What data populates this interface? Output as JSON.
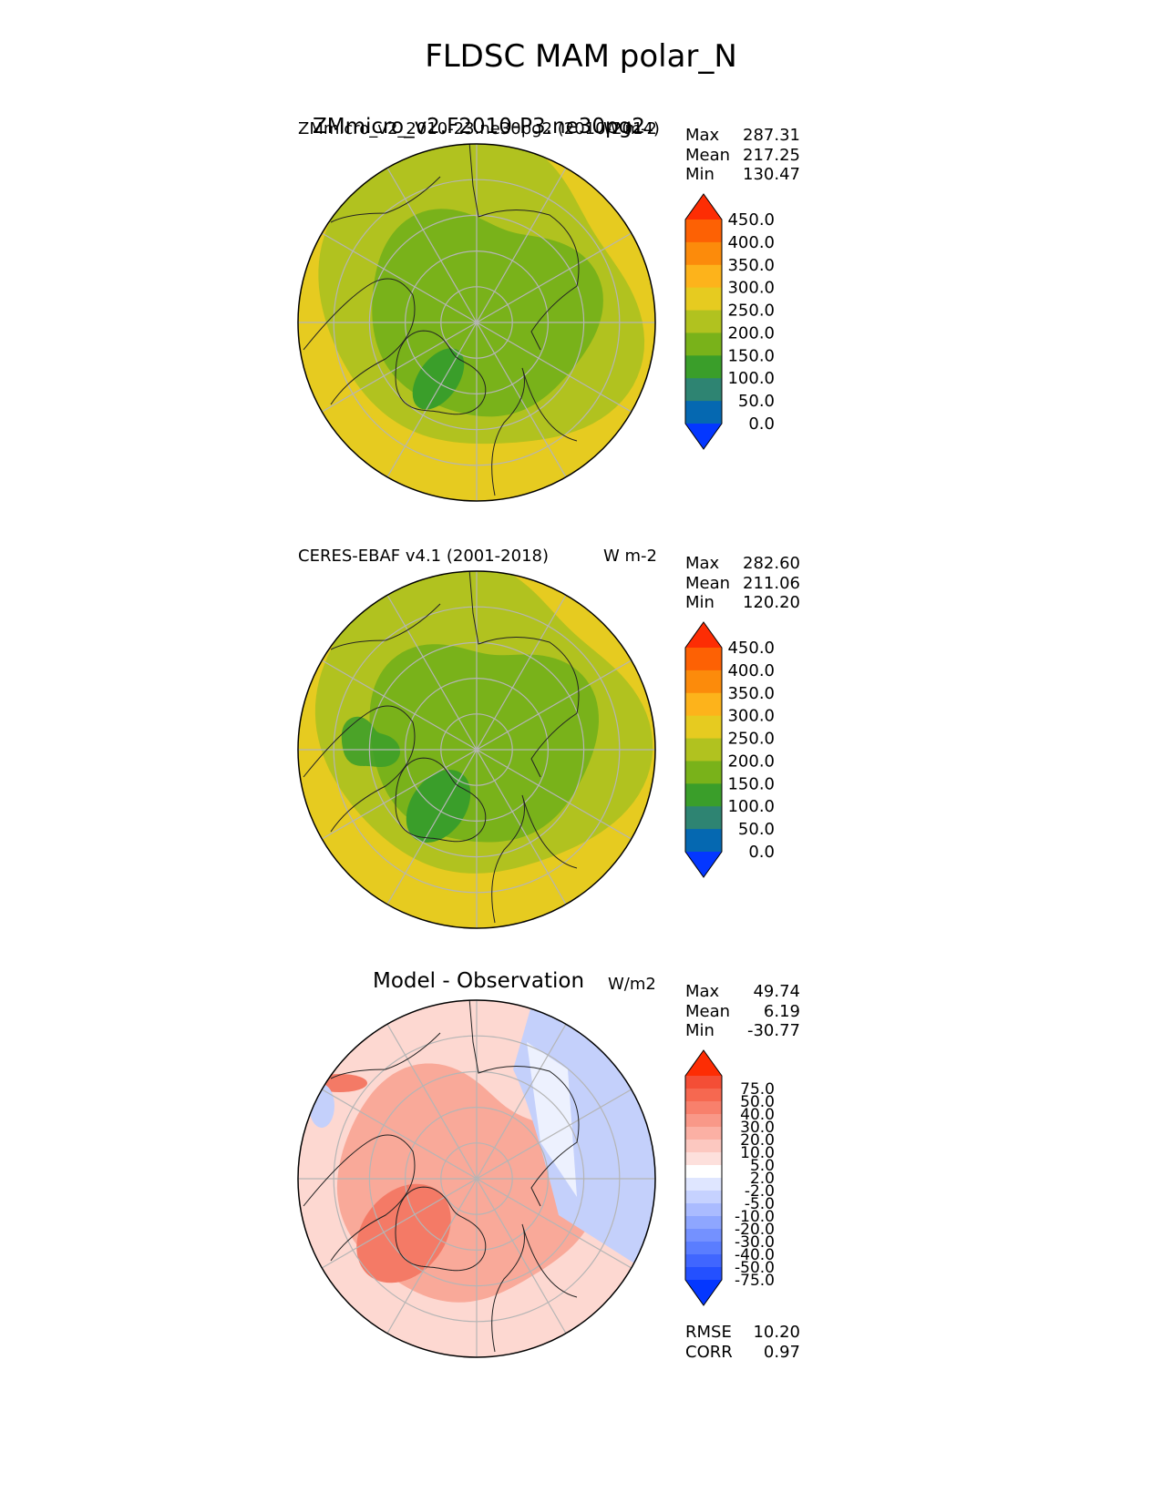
{
  "figure_title": "FLDSC MAM polar_N",
  "panels": [
    {
      "title_main": "ZMmicro_v2.F2010-P3.ne30pg2",
      "title_left": "ZMmicro_v2_2010-23.ne30pg2 (2010-2014)",
      "title_units": "W m-2",
      "stats": {
        "max_label": "Max",
        "max": "287.31",
        "mean_label": "Mean",
        "mean": "217.25",
        "min_label": "Min",
        "min": "130.47"
      }
    },
    {
      "title_left": "CERES-EBAF v4.1 (2001-2018)",
      "title_units": "W m-2",
      "stats": {
        "max_label": "Max",
        "max": "282.60",
        "mean_label": "Mean",
        "mean": "211.06",
        "min_label": "Min",
        "min": "120.20"
      }
    },
    {
      "title_main": "Model - Observation",
      "title_units": "W/m2",
      "stats": {
        "max_label": "Max",
        "max": "49.74",
        "mean_label": "Mean",
        "mean": "6.19",
        "min_label": "Min",
        "min": "-30.77"
      },
      "metrics": {
        "rmse_label": "RMSE",
        "rmse": "10.20",
        "corr_label": "CORR",
        "corr": "0.97"
      }
    }
  ],
  "chart_data": [
    {
      "type": "heatmap",
      "projection": "north polar stereographic",
      "name": "ZMmicro_v2.F2010-P3.ne30pg2",
      "colorbar": {
        "ticks": [
          "0.0",
          "50.0",
          "100.0",
          "150.0",
          "200.0",
          "250.0",
          "300.0",
          "350.0",
          "400.0",
          "450.0"
        ],
        "colors": [
          "#0437ff",
          "#0568b1",
          "#2e8472",
          "#3a9e2a",
          "#79b21a",
          "#b1c21f",
          "#e6cb20",
          "#fdb31b",
          "#fc8b0b",
          "#fd6104",
          "#fd2d04"
        ],
        "extend": "both"
      },
      "field_pattern": {
        "outer": "#e6cb20",
        "mid": "#b1c21f",
        "inner": "#79b21a",
        "min_patch": "#3a9e2a"
      }
    },
    {
      "type": "heatmap",
      "projection": "north polar stereographic",
      "name": "CERES-EBAF v4.1 (2001-2018)",
      "colorbar": {
        "ticks": [
          "0.0",
          "50.0",
          "100.0",
          "150.0",
          "200.0",
          "250.0",
          "300.0",
          "350.0",
          "400.0",
          "450.0"
        ],
        "colors": [
          "#0437ff",
          "#0568b1",
          "#2e8472",
          "#3a9e2a",
          "#79b21a",
          "#b1c21f",
          "#e6cb20",
          "#fdb31b",
          "#fc8b0b",
          "#fd6104",
          "#fd2d04"
        ],
        "extend": "both"
      },
      "field_pattern": {
        "outer": "#e6cb20",
        "mid": "#b1c21f",
        "inner": "#79b21a",
        "min_patch": "#3a9e2a"
      }
    },
    {
      "type": "heatmap",
      "projection": "north polar stereographic",
      "name": "Model - Observation",
      "colorbar": {
        "ticks": [
          "-75.0",
          "-50.0",
          "-40.0",
          "-30.0",
          "-20.0",
          "-10.0",
          "-5.0",
          "-2.0",
          "2.0",
          "5.0",
          "10.0",
          "20.0",
          "30.0",
          "40.0",
          "50.0",
          "75.0"
        ],
        "colors": [
          "#0437ff",
          "#2450ff",
          "#4066ff",
          "#5a7dff",
          "#7491ff",
          "#8ea6ff",
          "#aabbff",
          "#c6d2ff",
          "#dfe6ff",
          "#ffffff",
          "#fde0dc",
          "#fcc8c0",
          "#fbb0a4",
          "#f99888",
          "#f8806c",
          "#f66850",
          "#f44e36",
          "#fd2d04"
        ],
        "extend": "both"
      },
      "field_pattern": {
        "background": "#fdd8d1",
        "positive": "#f9a999",
        "strong_positive": "#f47a66",
        "negative": "#c4d0fb"
      }
    }
  ]
}
